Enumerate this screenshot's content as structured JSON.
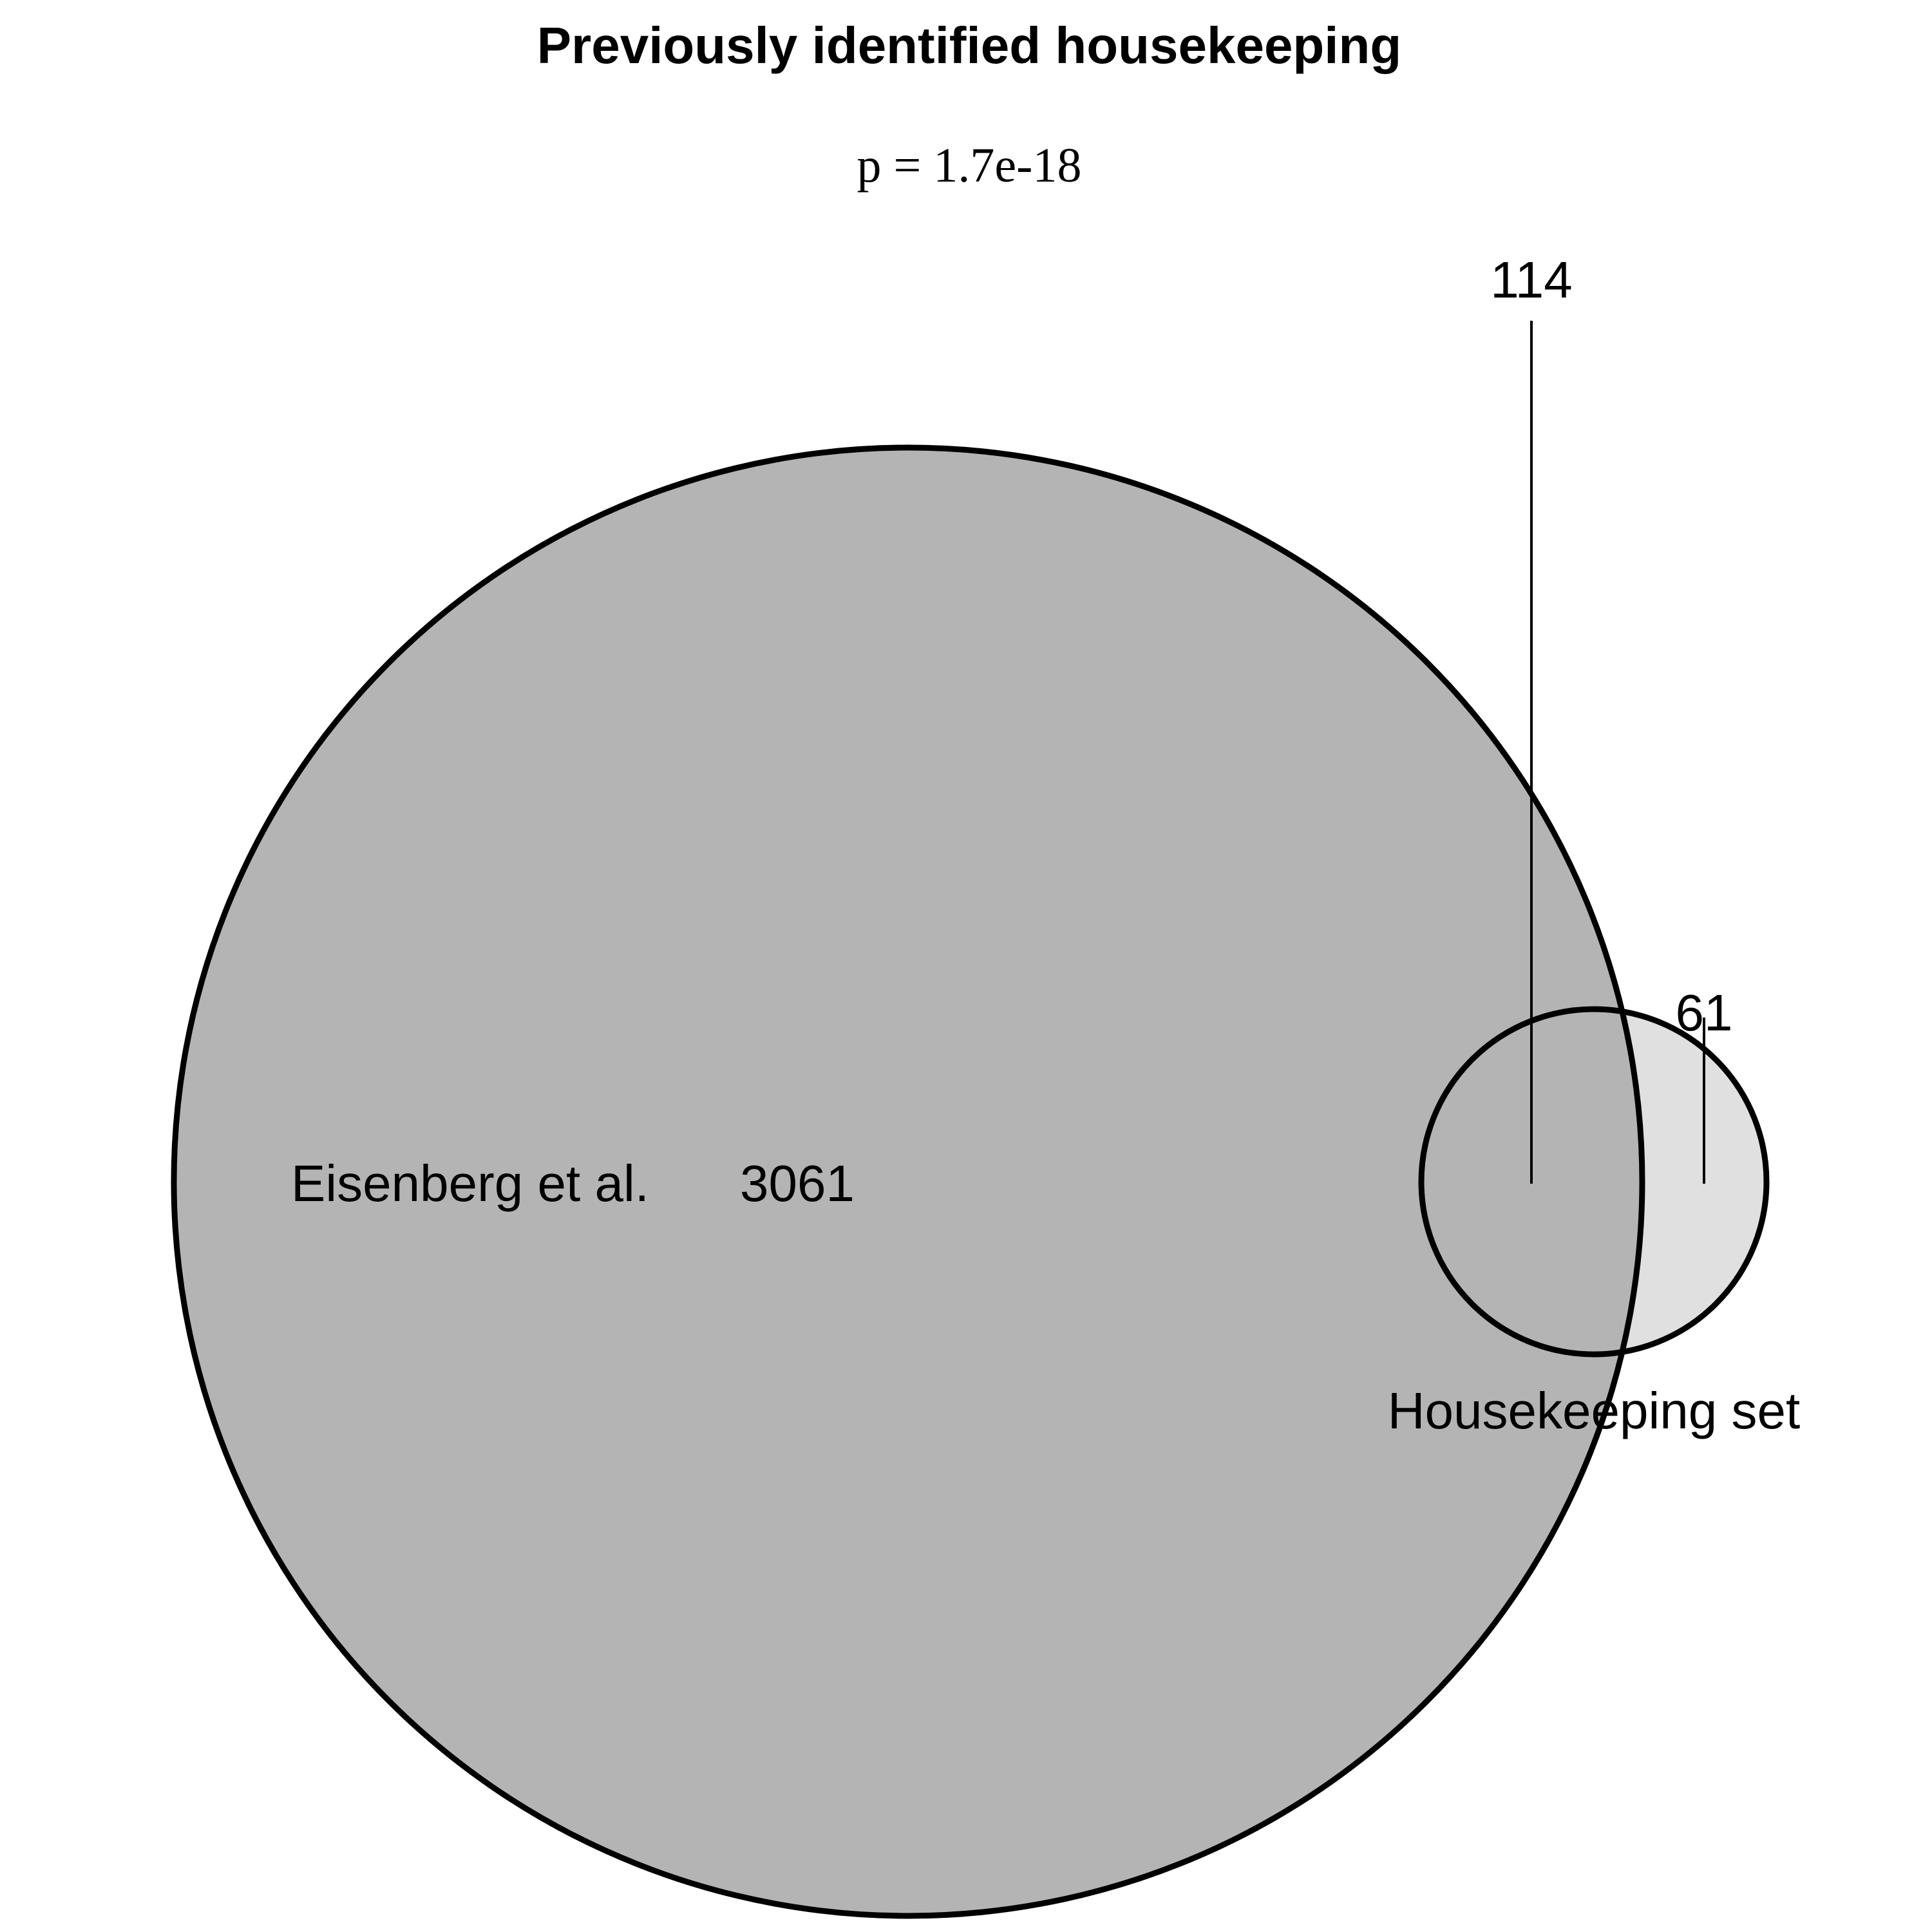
{
  "title": "Previously identified housekeeping",
  "subtitle": "p = 1.7e-18",
  "sets": [
    {
      "name": "Eisenberg et al.",
      "only_count": "3061",
      "color": "#b4b4b4"
    },
    {
      "name": "Housekeeping set",
      "only_count": "61",
      "color": "#e0e0e0"
    }
  ],
  "overlap_count": "114",
  "colors": {
    "outline": "#000000",
    "background": "#ffffff"
  }
}
